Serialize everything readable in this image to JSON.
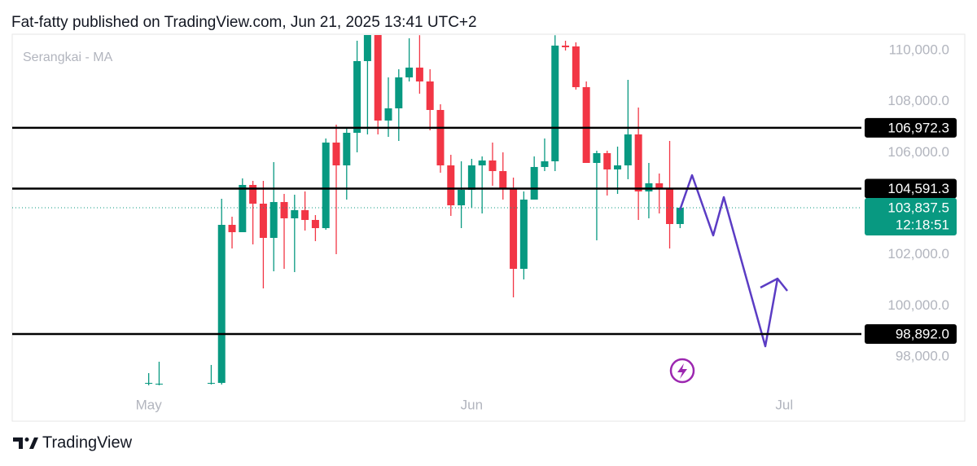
{
  "header": {
    "title": "Fat-fatty published on TradingView.com, Jun 21, 2025 13:41 UTC+2"
  },
  "chart_data": {
    "type": "candlestick",
    "legend": "Serangkai - MA",
    "up_color": "#089981",
    "down_color": "#f23645",
    "x": [
      0,
      1,
      6,
      7,
      8,
      9,
      10,
      11,
      12,
      13,
      14,
      15,
      16,
      17,
      18,
      19,
      20,
      21,
      22,
      23,
      24,
      25,
      26,
      27,
      28,
      29,
      30,
      31,
      32,
      33,
      34,
      35,
      36,
      37,
      38,
      39,
      40,
      41,
      42,
      43,
      44,
      45,
      46,
      47,
      48,
      49,
      50,
      51
    ],
    "open": [
      96945,
      96913,
      96945,
      96977,
      103169,
      102882,
      104733,
      103999,
      102658,
      104063,
      103425,
      103744,
      103361,
      103041,
      106393,
      105499,
      106776,
      109585,
      110606,
      107255,
      107734,
      108947,
      109330,
      108787,
      107670,
      105499,
      103935,
      104542,
      105499,
      105691,
      105276,
      104574,
      101446,
      104159,
      105436,
      105659,
      110192,
      110160,
      108564,
      105595,
      105978,
      105340,
      105499,
      106712,
      104478,
      104797,
      104574,
      103201
    ],
    "high": [
      97360,
      97807,
      97680,
      104190,
      103488,
      104989,
      104893,
      104893,
      105627,
      104382,
      104350,
      104478,
      103552,
      106553,
      107095,
      106968,
      110383,
      110600,
      110600,
      108947,
      109266,
      110479,
      110600,
      109266,
      107893,
      105914,
      105659,
      105755,
      105850,
      106393,
      106010,
      105020,
      104478,
      105850,
      106553,
      110600,
      110383,
      110319,
      108787,
      106074,
      106074,
      106234,
      108851,
      107766,
      105595,
      105180,
      106457,
      103871
    ],
    "low": [
      96881,
      96881,
      96913,
      96913,
      102244,
      102946,
      102403,
      100679,
      101350,
      101446,
      101318,
      102946,
      102531,
      102978,
      102020,
      104159,
      106010,
      106712,
      106712,
      106616,
      106457,
      108787,
      108308,
      106872,
      105212,
      103520,
      103041,
      103839,
      103616,
      104701,
      104159,
      100328,
      101031,
      104159,
      105276,
      105276,
      110000,
      108468,
      105595,
      102563,
      104318,
      104382,
      104957,
      103361,
      103425,
      103616,
      102244,
      103041
    ],
    "close": [
      96977,
      96945,
      96977,
      103169,
      102882,
      104733,
      103999,
      102658,
      104063,
      103425,
      103744,
      103361,
      103041,
      106393,
      105499,
      106776,
      109585,
      110606,
      107255,
      107734,
      108947,
      109330,
      108787,
      107670,
      105499,
      103935,
      104542,
      105499,
      105691,
      105276,
      104574,
      101446,
      104159,
      105436,
      105659,
      110192,
      110128,
      108564,
      105595,
      105978,
      105340,
      105499,
      106712,
      104478,
      104797,
      104574,
      103201,
      103837.5
    ],
    "xlim": [
      -13.1,
      68.4
    ],
    "xticks": [
      {
        "value": 0,
        "label": "May"
      },
      {
        "value": 31,
        "label": "Jun"
      },
      {
        "value": 61,
        "label": "Jul"
      }
    ],
    "ylim": [
      96434,
      110638
    ],
    "yticks": [
      {
        "value": 98000,
        "label": "98,000.0"
      },
      {
        "value": 100000,
        "label": "100,000.0"
      },
      {
        "value": 102000,
        "label": "102,000.0"
      },
      {
        "value": 106000,
        "label": "106,000.0"
      },
      {
        "value": 108000,
        "label": "108,000.0"
      },
      {
        "value": 110000,
        "label": "110,000.0"
      }
    ],
    "levels": [
      {
        "value": 106972.3,
        "label": "106,972.3"
      },
      {
        "value": 104591.3,
        "label": "104,591.3"
      },
      {
        "value": 98892.0,
        "label": "98,892.0"
      }
    ],
    "last_price": {
      "value": 103837.5,
      "label": "103,837.5",
      "countdown": "12:18:51"
    }
  },
  "footer": {
    "brand": "TradingView"
  }
}
